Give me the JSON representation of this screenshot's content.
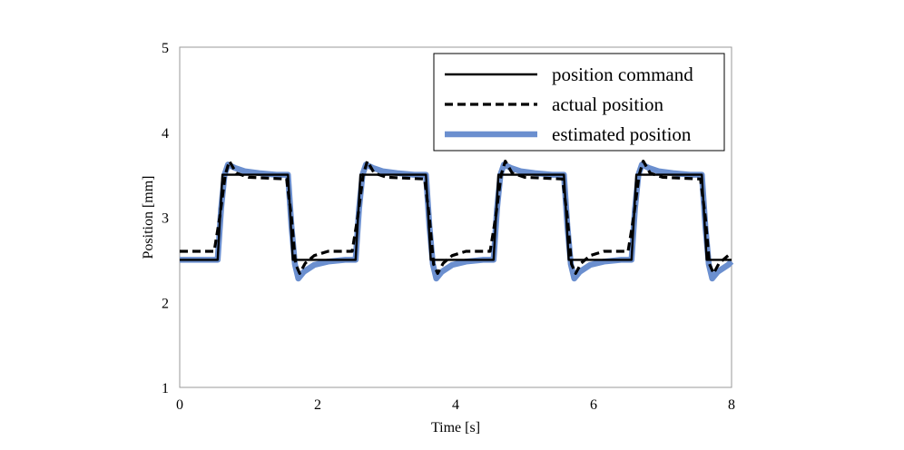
{
  "chart_data": {
    "type": "line",
    "title": "",
    "xlabel": "Time [s]",
    "ylabel": "Position [mm]",
    "xlim": [
      0,
      8
    ],
    "ylim": [
      1,
      5
    ],
    "xticks": [
      "0",
      "2",
      "4",
      "6",
      "8"
    ],
    "yticks": [
      "1",
      "2",
      "3",
      "4",
      "5"
    ],
    "grid": false,
    "legend_position": "top-right",
    "series": [
      {
        "name": "position command",
        "color": "#000000",
        "style": "solid",
        "x": [
          0,
          0.55,
          0.62,
          1.57,
          1.64,
          2.55,
          2.62,
          3.57,
          3.64,
          4.55,
          4.62,
          5.57,
          5.64,
          6.55,
          6.62,
          7.57,
          7.64,
          8.0
        ],
        "y": [
          2.5,
          2.5,
          3.5,
          3.5,
          2.5,
          2.5,
          3.5,
          3.5,
          2.5,
          2.5,
          3.5,
          3.5,
          2.5,
          2.5,
          3.5,
          3.5,
          2.5,
          2.5
        ]
      },
      {
        "name": "actual position",
        "color": "#000000",
        "style": "dashed",
        "x": [
          0,
          0.5,
          0.58,
          0.66,
          0.72,
          0.82,
          1.0,
          1.3,
          1.55,
          1.62,
          1.68,
          1.74,
          1.82,
          1.95,
          2.15,
          2.5,
          2.58,
          2.66,
          2.72,
          2.82,
          3.0,
          3.3,
          3.55,
          3.62,
          3.68,
          3.74,
          3.82,
          3.95,
          4.15,
          4.5,
          4.58,
          4.66,
          4.72,
          4.82,
          5.0,
          5.3,
          5.55,
          5.62,
          5.68,
          5.74,
          5.82,
          5.95,
          6.15,
          6.5,
          6.58,
          6.66,
          6.72,
          6.82,
          7.0,
          7.3,
          7.55,
          7.62,
          7.68,
          7.74,
          7.82,
          7.95,
          8.0
        ],
        "y": [
          2.6,
          2.6,
          3.0,
          3.5,
          3.66,
          3.52,
          3.47,
          3.46,
          3.45,
          3.0,
          2.45,
          2.34,
          2.46,
          2.55,
          2.6,
          2.6,
          3.0,
          3.5,
          3.66,
          3.52,
          3.47,
          3.46,
          3.45,
          3.0,
          2.45,
          2.34,
          2.46,
          2.55,
          2.6,
          2.6,
          3.0,
          3.5,
          3.66,
          3.52,
          3.47,
          3.46,
          3.45,
          3.0,
          2.45,
          2.34,
          2.46,
          2.55,
          2.6,
          2.6,
          3.0,
          3.5,
          3.66,
          3.52,
          3.47,
          3.46,
          3.45,
          3.0,
          2.45,
          2.34,
          2.46,
          2.55,
          2.58
        ]
      },
      {
        "name": "estimated position",
        "color": "#6b8fcf",
        "style": "solid",
        "x": [
          0,
          0.55,
          0.6,
          0.65,
          0.7,
          0.8,
          0.95,
          1.15,
          1.4,
          1.57,
          1.62,
          1.67,
          1.72,
          1.8,
          1.95,
          2.15,
          2.4,
          2.55,
          2.6,
          2.65,
          2.7,
          2.8,
          2.95,
          3.15,
          3.4,
          3.57,
          3.62,
          3.67,
          3.72,
          3.8,
          3.95,
          4.15,
          4.4,
          4.55,
          4.6,
          4.65,
          4.7,
          4.8,
          4.95,
          5.15,
          5.4,
          5.57,
          5.62,
          5.67,
          5.72,
          5.8,
          5.95,
          6.15,
          6.4,
          6.55,
          6.6,
          6.65,
          6.7,
          6.8,
          6.95,
          7.15,
          7.4,
          7.57,
          7.62,
          7.67,
          7.72,
          7.8,
          7.95,
          8.0
        ],
        "y": [
          2.5,
          2.5,
          3.1,
          3.5,
          3.62,
          3.58,
          3.54,
          3.52,
          3.5,
          3.5,
          2.9,
          2.45,
          2.28,
          2.36,
          2.44,
          2.48,
          2.5,
          2.5,
          3.1,
          3.5,
          3.62,
          3.58,
          3.54,
          3.52,
          3.5,
          3.5,
          2.9,
          2.45,
          2.28,
          2.36,
          2.44,
          2.48,
          2.5,
          2.5,
          3.1,
          3.5,
          3.62,
          3.58,
          3.54,
          3.52,
          3.5,
          3.5,
          2.9,
          2.45,
          2.28,
          2.36,
          2.44,
          2.48,
          2.5,
          2.5,
          3.1,
          3.5,
          3.62,
          3.58,
          3.54,
          3.52,
          3.5,
          3.5,
          2.9,
          2.45,
          2.28,
          2.36,
          2.44,
          2.48
        ]
      }
    ]
  }
}
